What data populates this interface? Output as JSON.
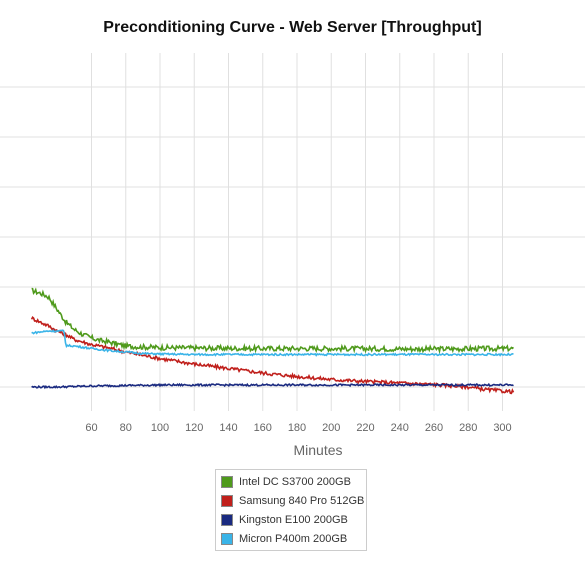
{
  "chart_data": {
    "type": "line",
    "title": "Preconditioning Curve - Web Server [Throughput]",
    "xlabel": "Minutes",
    "ylabel": "",
    "x_ticks": [
      60,
      80,
      100,
      120,
      140,
      160,
      180,
      200,
      220,
      240,
      260,
      280,
      300
    ],
    "xlim": [
      25,
      307
    ],
    "ylim": [
      0,
      8
    ],
    "grid": true,
    "legend_position": "bottom",
    "series": [
      {
        "name": "Intel DC S3700 200GB",
        "color": "#4f9a1c",
        "x": [
          25,
          30,
          35,
          40,
          45,
          50,
          55,
          60,
          65,
          70,
          75,
          80,
          90,
          100,
          120,
          150,
          200,
          250,
          307
        ],
        "y": [
          1.93,
          1.88,
          1.8,
          1.55,
          1.3,
          1.15,
          1.05,
          0.98,
          0.93,
          0.9,
          0.86,
          0.82,
          0.8,
          0.79,
          0.78,
          0.77,
          0.77,
          0.76,
          0.77
        ]
      },
      {
        "name": "Samsung 840 Pro 512GB",
        "color": "#c0201c",
        "x": [
          25,
          30,
          35,
          40,
          45,
          50,
          60,
          70,
          80,
          100,
          120,
          140,
          160,
          180,
          200,
          220,
          240,
          260,
          280,
          290,
          300,
          307
        ],
        "y": [
          1.38,
          1.3,
          1.22,
          1.12,
          1.05,
          0.95,
          0.85,
          0.78,
          0.7,
          0.57,
          0.46,
          0.37,
          0.28,
          0.21,
          0.15,
          0.11,
          0.08,
          0.05,
          0.0,
          -0.05,
          -0.08,
          -0.1
        ]
      },
      {
        "name": "Kingston E100 200GB",
        "color": "#1a2a80",
        "x": [
          25,
          40,
          60,
          80,
          100,
          120,
          140,
          160,
          180,
          200,
          220,
          240,
          260,
          280,
          300,
          307
        ],
        "y": [
          0.0,
          0.0,
          0.02,
          0.03,
          0.04,
          0.04,
          0.04,
          0.04,
          0.04,
          0.04,
          0.04,
          0.04,
          0.04,
          0.04,
          0.04,
          0.04
        ]
      },
      {
        "name": "Micron P400m 200GB",
        "color": "#3ab4e8",
        "x": [
          25,
          30,
          35,
          40,
          44,
          45,
          50,
          60,
          70,
          80,
          90,
          100,
          120,
          150,
          200,
          250,
          307
        ],
        "y": [
          1.08,
          1.1,
          1.12,
          1.12,
          1.12,
          0.83,
          0.82,
          0.77,
          0.73,
          0.7,
          0.67,
          0.66,
          0.65,
          0.65,
          0.65,
          0.65,
          0.65
        ]
      }
    ]
  }
}
